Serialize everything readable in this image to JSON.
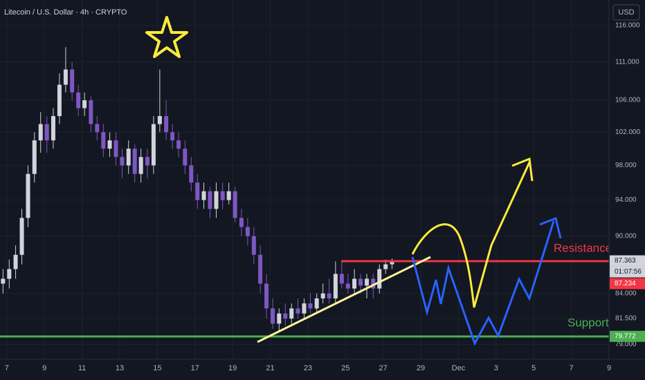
{
  "chart_data": {
    "type": "candlestick",
    "title": "Litecoin / U.S. Dollar · 4h · CRYPTO",
    "currency": "USD",
    "log_scale": true,
    "grid": true,
    "up_color": "#d1d4dc",
    "down_color": "#7e57c2",
    "ylim": [
      77.6,
      119.6
    ],
    "yticks": [
      {
        "value": 116,
        "label": "116.000"
      },
      {
        "value": 111,
        "label": "111.000"
      },
      {
        "value": 106,
        "label": "106.000"
      },
      {
        "value": 102,
        "label": "102.000"
      },
      {
        "value": 98,
        "label": "98.000"
      },
      {
        "value": 94,
        "label": "94.000"
      },
      {
        "value": 90,
        "label": "90.000"
      },
      {
        "value": 84,
        "label": "84.000"
      },
      {
        "value": 81.5,
        "label": "81.500"
      },
      {
        "value": 79,
        "label": "79.000"
      }
    ],
    "xlim": [
      6.64,
      39
    ],
    "xticks": [
      7,
      9,
      11,
      13,
      15,
      17,
      19,
      21,
      23,
      25,
      27,
      29,
      {
        "value": 31,
        "label": "Dec"
      },
      {
        "value": 33,
        "label": "3"
      },
      {
        "value": 35,
        "label": "5"
      },
      {
        "value": 37,
        "label": "7"
      },
      {
        "value": 39,
        "label": "9"
      }
    ],
    "x": [
      6.8,
      7.13,
      7.47,
      7.8,
      8.13,
      8.47,
      8.8,
      9.13,
      9.47,
      9.8,
      10.13,
      10.47,
      10.8,
      11.13,
      11.47,
      11.8,
      12.13,
      12.47,
      12.8,
      13.13,
      13.47,
      13.8,
      14.13,
      14.47,
      14.8,
      15.13,
      15.47,
      15.8,
      16.13,
      16.47,
      16.8,
      17.13,
      17.47,
      17.8,
      18.13,
      18.47,
      18.8,
      19.13,
      19.47,
      19.8,
      20.13,
      20.47,
      20.8,
      21.13,
      21.47,
      21.8,
      22.13,
      22.47,
      22.8,
      23.13,
      23.47,
      23.8,
      24.13,
      24.47,
      24.8,
      25.13,
      25.47,
      25.8,
      26.13,
      26.47,
      26.8,
      27.13,
      27.47
    ],
    "open": [
      85,
      85.5,
      86.5,
      88,
      92,
      97,
      101,
      103,
      101,
      104,
      108,
      110,
      107,
      105,
      106,
      103,
      102,
      100,
      101,
      99,
      98,
      100,
      97,
      99,
      98,
      103,
      104,
      102,
      101,
      100,
      98,
      96,
      94,
      95,
      93,
      95,
      94,
      95,
      92,
      91,
      90,
      88,
      85,
      82.5,
      81,
      82,
      81.5,
      82.5,
      82,
      83,
      82.5,
      83.5,
      84,
      83.5,
      86,
      85,
      84.5,
      85.5,
      84.8,
      85.5,
      84.5,
      86.5,
      87
    ],
    "high": [
      86.5,
      87.5,
      89,
      93,
      98,
      102,
      104.5,
      104,
      105,
      109.5,
      113,
      111,
      108,
      107,
      106.5,
      104,
      103,
      102,
      102,
      100,
      101,
      100.5,
      100,
      100,
      104,
      110,
      106,
      103,
      102,
      101,
      99,
      97,
      96,
      95.5,
      96,
      96,
      96,
      95.5,
      93,
      92,
      91,
      89,
      86,
      83.5,
      82.5,
      83,
      83,
      83.5,
      83.5,
      84,
      84,
      85,
      85.5,
      87.3,
      87.3,
      86,
      86.5,
      86,
      86,
      86,
      87,
      87.5,
      87.6
    ],
    "low": [
      84,
      84.5,
      85.5,
      87,
      91,
      96,
      99.5,
      99.5,
      100,
      103,
      107,
      106,
      104,
      104,
      102,
      101,
      99,
      99,
      98,
      96.5,
      97,
      96,
      96,
      96.5,
      97,
      102,
      101,
      100,
      99,
      97,
      95,
      93,
      93,
      92,
      92,
      93,
      93.5,
      91.5,
      90,
      89,
      87,
      84,
      81.5,
      80.5,
      80.3,
      80.8,
      81,
      81.5,
      81.5,
      82,
      82,
      83,
      83,
      83,
      84.5,
      84,
      84,
      84,
      83.5,
      83.5,
      84,
      86,
      86.5
    ],
    "close": [
      85.5,
      86.5,
      88,
      92,
      97,
      101,
      103,
      101,
      104,
      108,
      110,
      107,
      105,
      106,
      103,
      102,
      100,
      101,
      99,
      98,
      100,
      97,
      99,
      98,
      103,
      104,
      102,
      101,
      100,
      98,
      96,
      94,
      95,
      93,
      95,
      94,
      95,
      92,
      91,
      90,
      88,
      85,
      82.5,
      81,
      82,
      81.5,
      82.5,
      82,
      83,
      82.5,
      83.5,
      84,
      83.5,
      86,
      85,
      84.5,
      85.5,
      84.8,
      85.5,
      84.5,
      86.5,
      87,
      87.36
    ],
    "last_price": 87.363,
    "countdown": "01:07:56",
    "bid_price": 87.234,
    "support_price": 79.772,
    "annotations": [
      "Resistance",
      "Support"
    ]
  }
}
